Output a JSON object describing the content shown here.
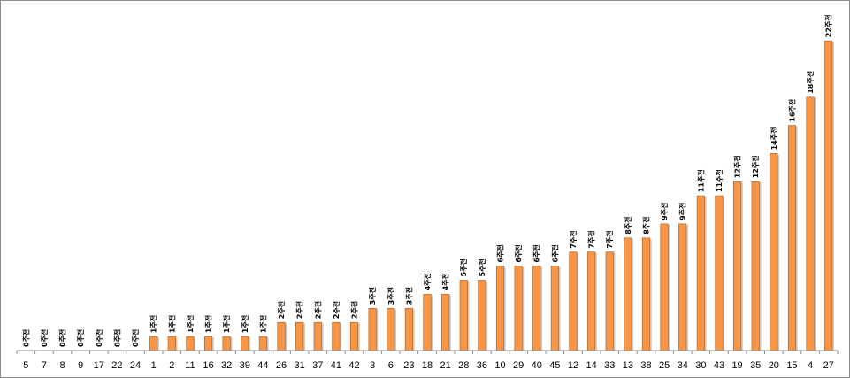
{
  "colors": {
    "bar_fill": "#F79646",
    "bar_stroke": "#A8581A",
    "axis": "#8C8C8C",
    "text": "#000000"
  },
  "chart_data": {
    "type": "bar",
    "title": "",
    "xlabel": "",
    "ylabel": "",
    "ylim": [
      0,
      23
    ],
    "grid": false,
    "legend": "none",
    "categories": [
      "5",
      "7",
      "8",
      "9",
      "17",
      "22",
      "24",
      "1",
      "2",
      "11",
      "16",
      "32",
      "39",
      "44",
      "26",
      "31",
      "37",
      "41",
      "42",
      "3",
      "6",
      "23",
      "18",
      "21",
      "28",
      "36",
      "10",
      "29",
      "40",
      "45",
      "12",
      "14",
      "33",
      "13",
      "38",
      "25",
      "34",
      "30",
      "43",
      "19",
      "35",
      "20",
      "15",
      "4",
      "27"
    ],
    "values": [
      0,
      0,
      0,
      0,
      0,
      0,
      0,
      1,
      1,
      1,
      1,
      1,
      1,
      1,
      2,
      2,
      2,
      2,
      2,
      3,
      3,
      3,
      4,
      4,
      5,
      5,
      6,
      6,
      6,
      6,
      7,
      7,
      7,
      8,
      8,
      9,
      9,
      11,
      11,
      12,
      12,
      14,
      16,
      18,
      22
    ],
    "data_labels": [
      "0주전",
      "0주전",
      "0주전",
      "0주전",
      "0주전",
      "0주전",
      "0주전",
      "1주전",
      "1주전",
      "1주전",
      "1주전",
      "1주전",
      "1주전",
      "1주전",
      "2주전",
      "2주전",
      "2주전",
      "2주전",
      "2주전",
      "3주전",
      "3주전",
      "3주전",
      "4주전",
      "4주전",
      "5주전",
      "5주전",
      "6주전",
      "6주전",
      "6주전",
      "6주전",
      "7주전",
      "7주전",
      "7주전",
      "8주전",
      "8주전",
      "9주전",
      "9주전",
      "11주전",
      "11주전",
      "12주전",
      "12주전",
      "14주전",
      "16주전",
      "18주전",
      "22주전"
    ]
  }
}
